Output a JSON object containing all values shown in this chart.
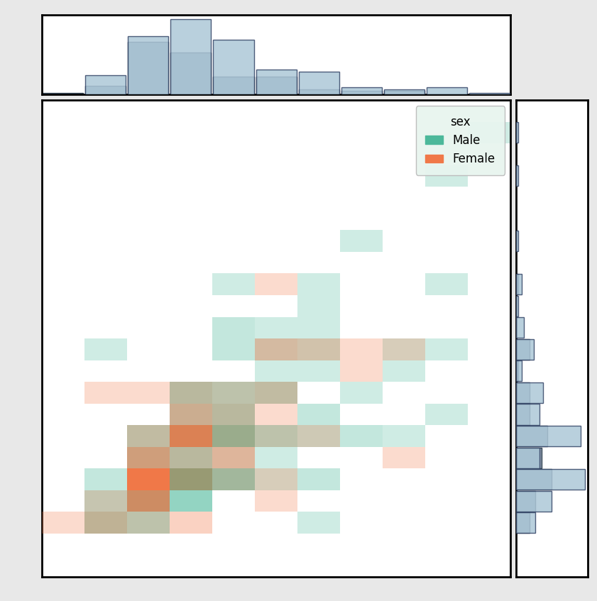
{
  "male_color": "#4cb89a",
  "female_color": "#f07848",
  "hist_blue": "#adc8d8",
  "hist_gray": "#8c9aaa",
  "hist_orange": "#e8b090",
  "legend_title": "sex",
  "legend_male": "Male",
  "legend_female": "Female",
  "background_color": "#ffffff",
  "outer_bg": "#e8e8e8",
  "x_bin_size": 5,
  "y_bin_size": 0.5,
  "x_min": 0,
  "x_max": 55,
  "y_min": 0,
  "y_max": 10.5
}
